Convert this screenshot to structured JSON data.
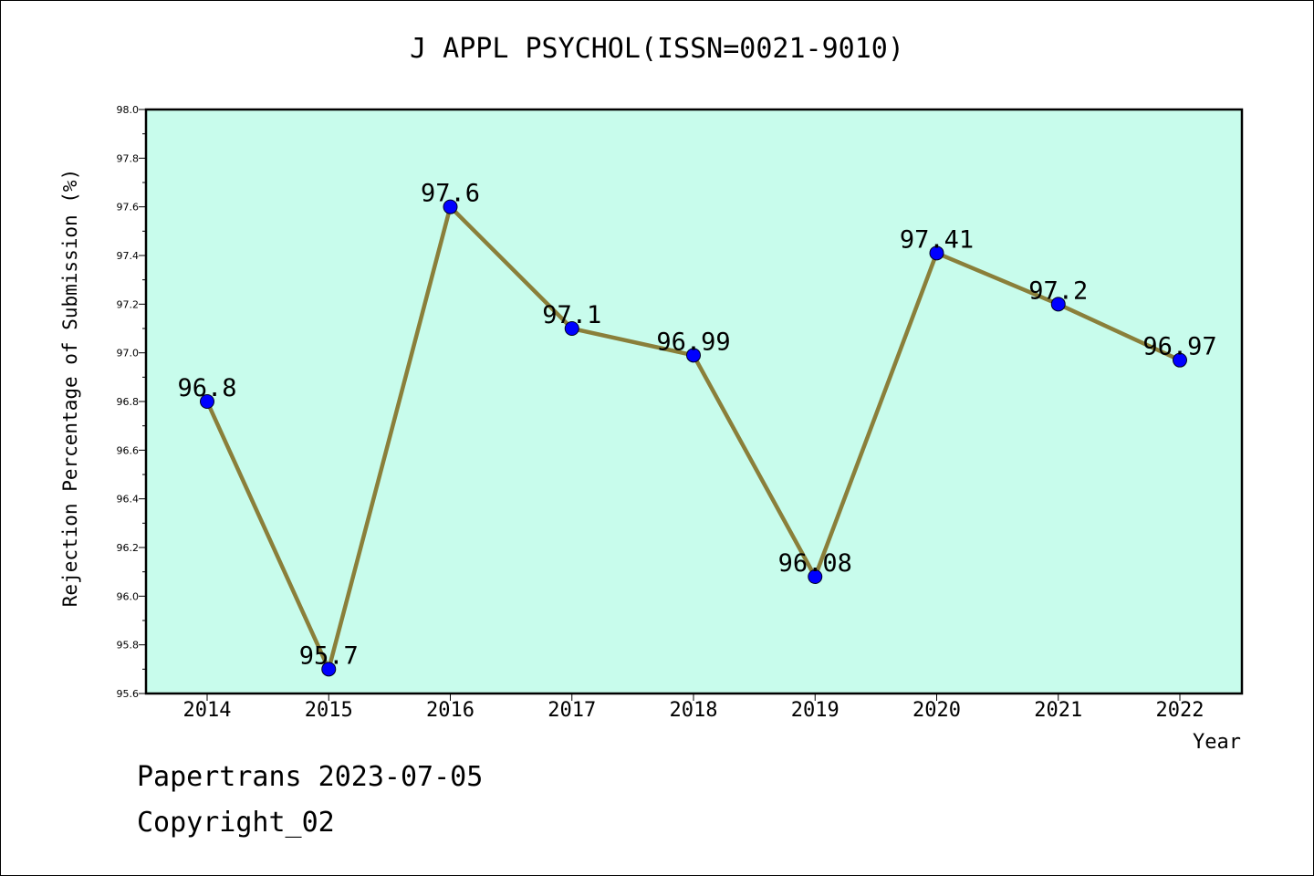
{
  "chart_data": {
    "type": "line",
    "title": "J APPL PSYCHOL(ISSN=0021-9010)",
    "xlabel": "Year",
    "ylabel": "Rejection Percentage of Submission (%)",
    "x": [
      "2014",
      "2015",
      "2016",
      "2017",
      "2018",
      "2019",
      "2020",
      "2021",
      "2022"
    ],
    "values": [
      96.8,
      95.7,
      97.6,
      97.1,
      96.99,
      96.08,
      97.41,
      97.2,
      96.97
    ],
    "data_labels": [
      "96.8",
      "95.7",
      "97.6",
      "97.1",
      "96.99",
      "96.08",
      "97.41",
      "97.2",
      "96.97"
    ],
    "ylim": [
      95.6,
      98.0
    ],
    "y_ticks": [
      "95.6",
      "95.8",
      "96.0",
      "96.2",
      "96.4",
      "96.6",
      "96.8",
      "97.0",
      "97.2",
      "97.4",
      "97.6",
      "97.8",
      "98.0"
    ],
    "grid": false,
    "colors": {
      "plot_bg": "#c8fcec",
      "line": "#8a7f3a",
      "marker": "#0000ff"
    }
  },
  "footer": {
    "line1": "Papertrans 2023-07-05",
    "line2": "Copyright_02"
  }
}
